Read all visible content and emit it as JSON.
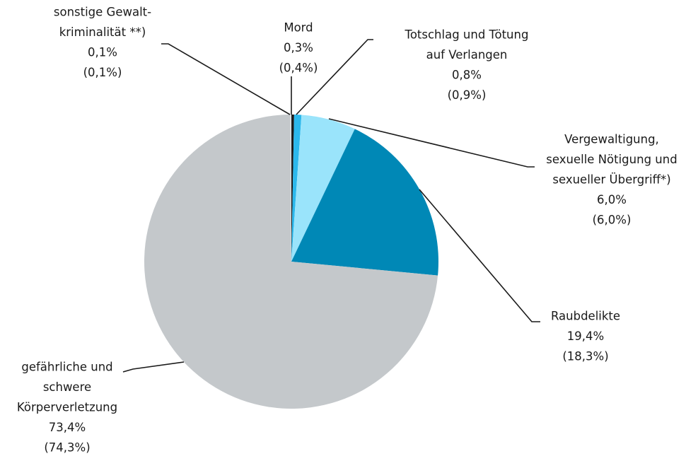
{
  "chart_data": {
    "type": "pie",
    "categories": [
      [
        "Mord"
      ],
      [
        "Totschlag und Tötung",
        "auf Verlangen"
      ],
      [
        "Vergewaltigung,",
        "sexuelle Nötigung und",
        "sexueller Übergriff*)"
      ],
      [
        "Raubdelikte"
      ],
      [
        "gefährliche und",
        "schwere",
        "Körperverletzung"
      ],
      [
        "sonstige Gewalt-",
        "kriminalität **)"
      ]
    ],
    "values": [
      0.3,
      0.8,
      6.0,
      19.4,
      73.4,
      0.1
    ],
    "value_labels": [
      "0,3%",
      "0,8%",
      "6,0%",
      "19,4%",
      "73,4%",
      "0,1%"
    ],
    "prior_labels": [
      "(0,4%)",
      "(0,9%)",
      "(6,0%)",
      "(18,3%)",
      "(74,3%)",
      "(0,1%)"
    ],
    "colors": [
      "#1e1e1e",
      "#2bb8ec",
      "#9ae4fb",
      "#0088b6",
      "#c4c8cb",
      "#e6eaec"
    ]
  }
}
